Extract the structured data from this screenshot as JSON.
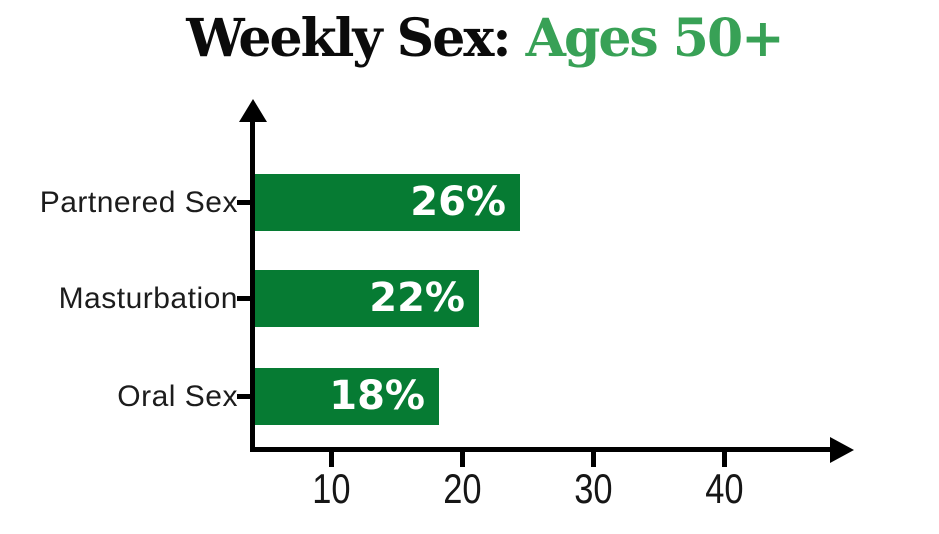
{
  "title": {
    "black": "Weekly Sex:",
    "accent": "Ages 50+"
  },
  "chart_data": {
    "type": "bar",
    "orientation": "horizontal",
    "title": "Weekly Sex: Ages 50+",
    "categories": [
      "Partnered Sex",
      "Masturbation",
      "Oral Sex"
    ],
    "values": [
      26,
      22,
      18
    ],
    "value_labels": [
      "26%",
      "22%",
      "18%"
    ],
    "x_ticks": [
      10,
      20,
      30,
      40
    ],
    "xlim": [
      0,
      45
    ],
    "grid": false,
    "legend": false,
    "bar_color": "#067b33",
    "value_label_color": "#ffffff",
    "title_accent_color": "#38a156",
    "axis_color": "#000000"
  }
}
